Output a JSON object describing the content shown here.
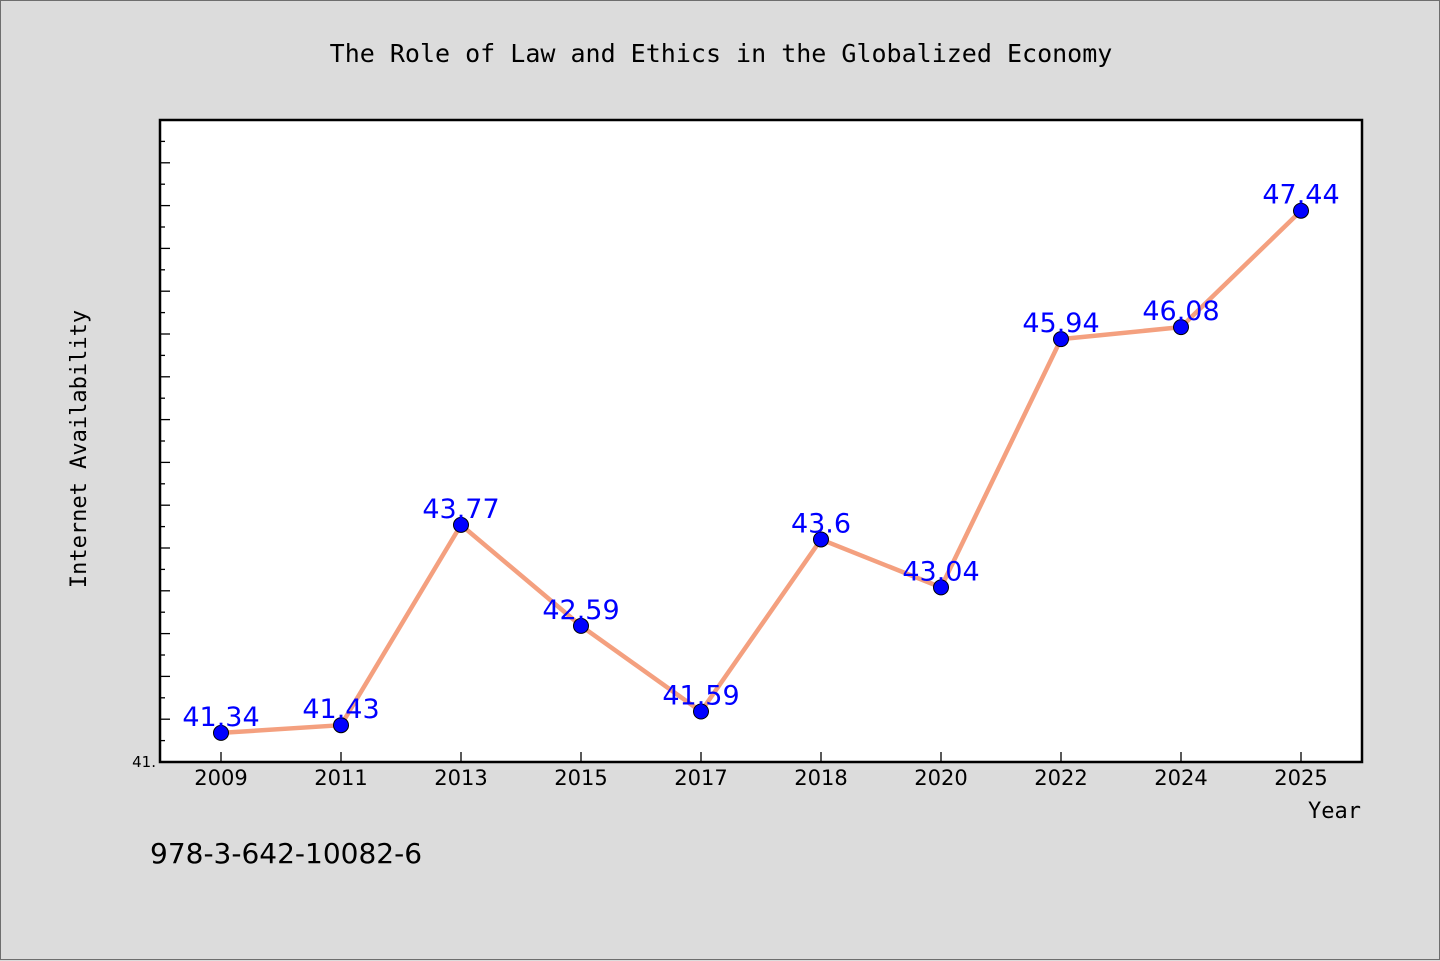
{
  "chart_data": {
    "type": "line",
    "title": "The Role of Law and Ethics in the Globalized Economy",
    "xlabel": "Year",
    "ylabel": "Internet Availability",
    "categories": [
      "2009",
      "2011",
      "2013",
      "2015",
      "2017",
      "2018",
      "2020",
      "2022",
      "2024",
      "2025"
    ],
    "series": [
      {
        "values": [
          41.34,
          41.43,
          43.77,
          42.59,
          41.59,
          43.6,
          43.04,
          45.94,
          46.08,
          47.44
        ],
        "labels": [
          "41.34",
          "41.43",
          "43.77",
          "42.59",
          "41.59",
          "43.6",
          "43.04",
          "45.94",
          "46.08",
          "47.44"
        ],
        "line_color": "#f4a07f",
        "marker_color": "#0000ff"
      }
    ],
    "ylim": [
      41.0,
      48.5
    ],
    "y_tick_labels": [
      "41."
    ],
    "grid": false,
    "legend": "none"
  },
  "footer": {
    "isbn": "978-3-642-10082-6"
  }
}
